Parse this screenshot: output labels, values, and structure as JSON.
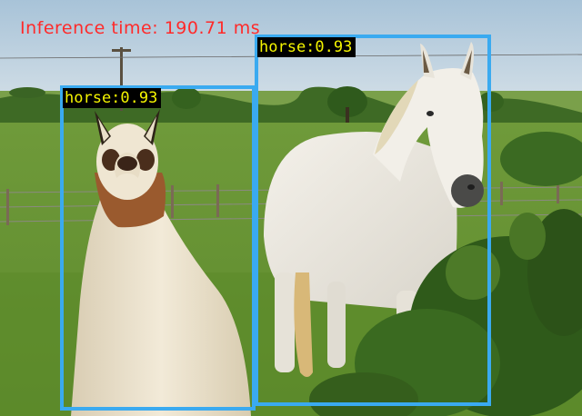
{
  "overlay": {
    "inference_text": "Inference time: 190.71 ms",
    "inference_color": "#ff2a2a",
    "box_color": "#3aaaf0",
    "label_text_color": "#f5f500"
  },
  "detections": [
    {
      "label": "horse:0.93",
      "class": "horse",
      "score": 0.93
    },
    {
      "label": "horse:0.93",
      "class": "horse",
      "score": 0.93
    }
  ],
  "scene": {
    "subjects": [
      "llama-icon",
      "white-horse-icon"
    ]
  }
}
